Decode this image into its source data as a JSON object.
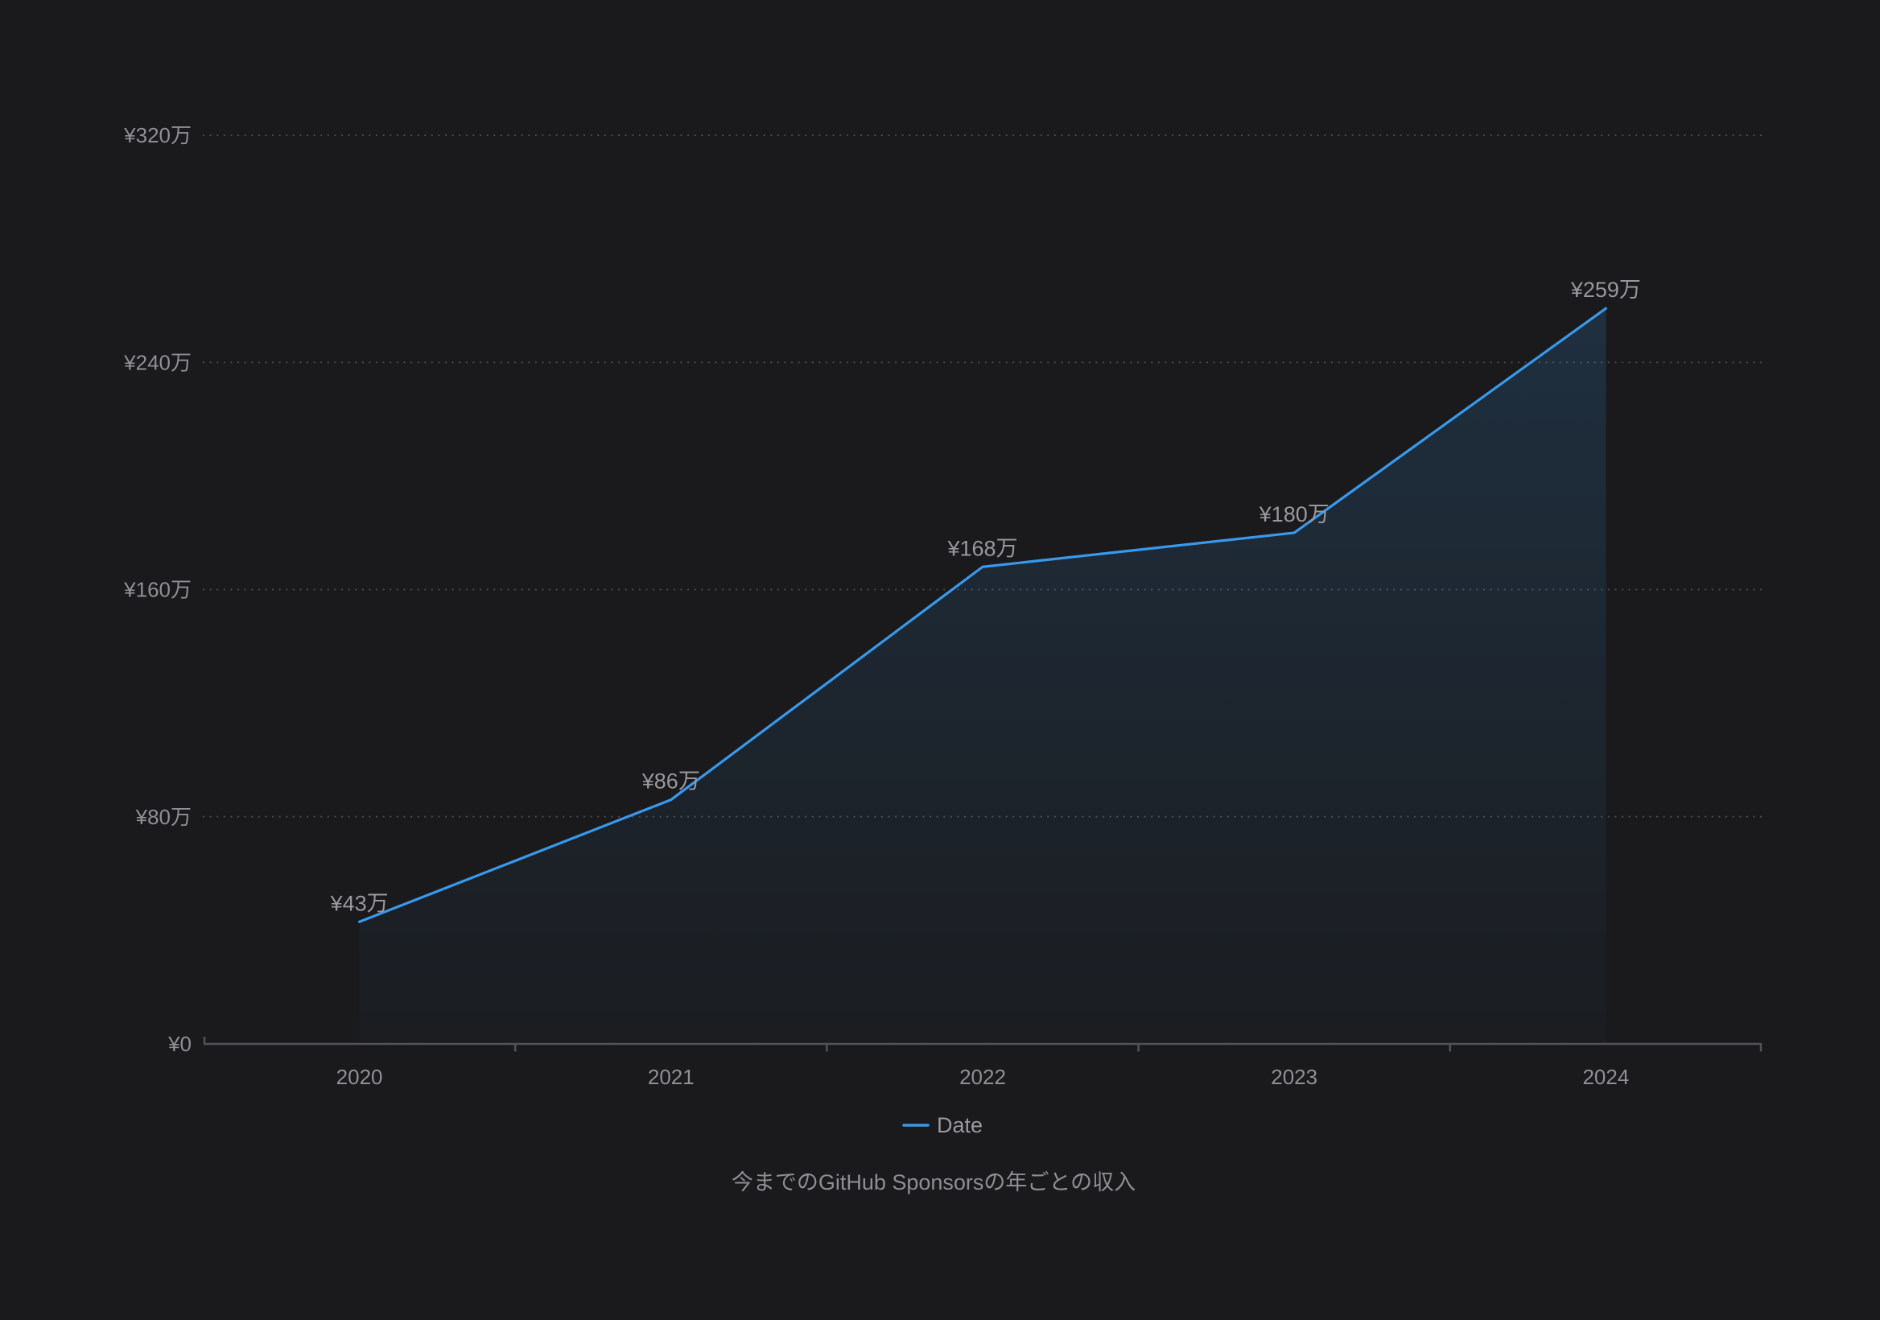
{
  "colors": {
    "background": "#1a1a1c",
    "accent_blue": "#3899ec",
    "grid_dot": "#48484c",
    "axis_line": "#525257",
    "tick_label_text": "#8f8f94",
    "data_label_text": "#98989d",
    "caption_text": "#8e8e93",
    "legend_text": "#9a9a9f"
  },
  "chart_data": {
    "type": "area",
    "caption": "今までのGitHub Sponsorsの年ごとの収入",
    "legend_label": "Date",
    "legend_position": "bottom-center",
    "grid": "dotted-horizontal",
    "x_categories": [
      "2020",
      "2021",
      "2022",
      "2023",
      "2024"
    ],
    "values_man_yen": [
      43,
      86,
      168,
      180,
      259
    ],
    "point_labels": [
      "¥43万",
      "¥86万",
      "¥168万",
      "¥180万",
      "¥259万"
    ],
    "y_axis": {
      "ylim": [
        0,
        320
      ],
      "ticks": [
        0,
        80,
        160,
        240,
        320
      ],
      "tick_labels": [
        "¥0",
        "¥80万",
        "¥160万",
        "¥240万",
        "¥320万"
      ]
    }
  }
}
